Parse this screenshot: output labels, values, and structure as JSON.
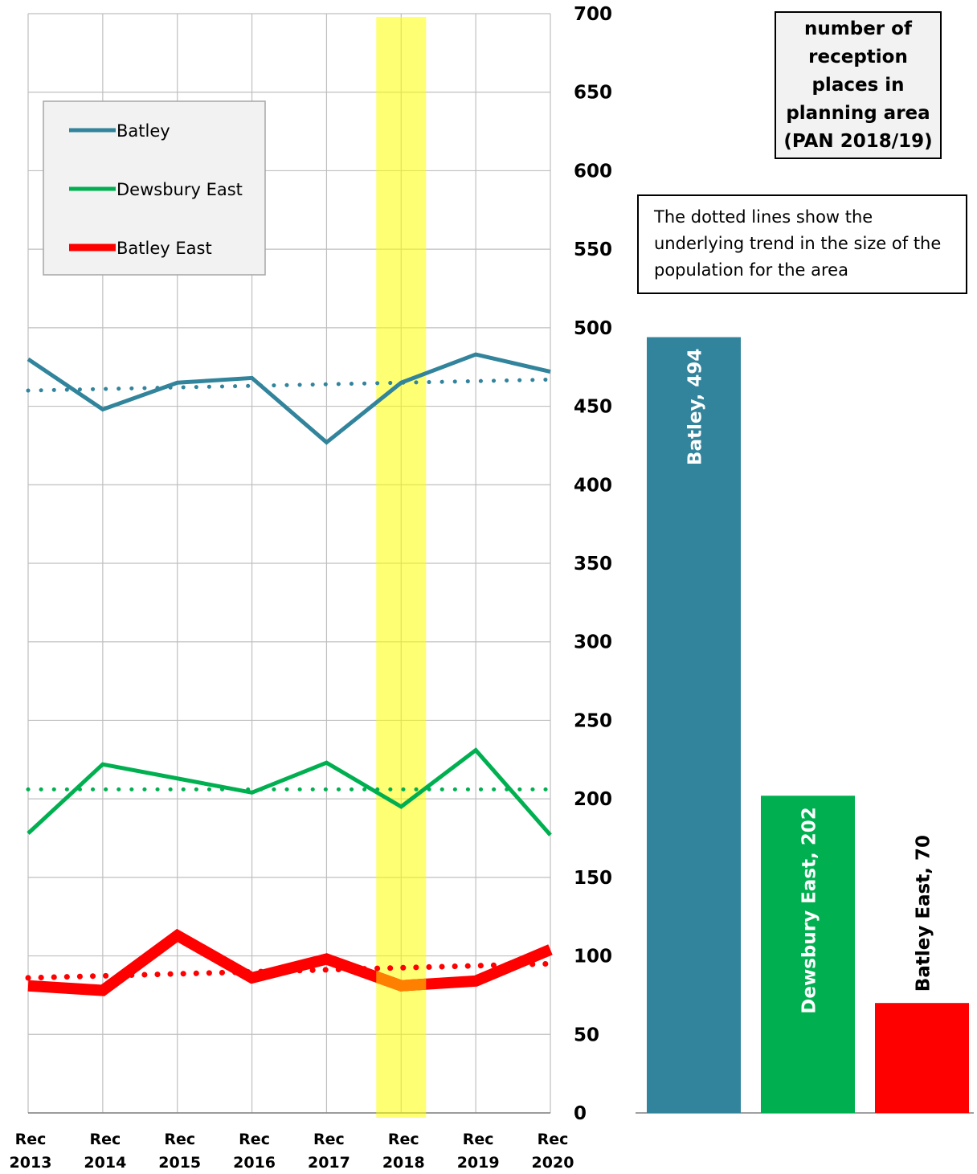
{
  "chart_data": [
    {
      "type": "line",
      "categories": [
        "Rec 2013",
        "Rec 2014",
        "Rec 2015",
        "Rec 2016",
        "Rec 2017",
        "Rec 2018",
        "Rec 2019",
        "Rec 2020"
      ],
      "category_lines": [
        [
          "Rec",
          "2013"
        ],
        [
          "Rec",
          "2014"
        ],
        [
          "Rec",
          "2015"
        ],
        [
          "Rec",
          "2016"
        ],
        [
          "Rec",
          "2017"
        ],
        [
          "Rec",
          "2018"
        ],
        [
          "Rec",
          "2019"
        ],
        [
          "Rec",
          "2020"
        ]
      ],
      "ylim": [
        0,
        700
      ],
      "yticks": [
        0,
        50,
        100,
        150,
        200,
        250,
        300,
        350,
        400,
        450,
        500,
        550,
        600,
        650,
        700
      ],
      "y_axis_side": "right",
      "grid": true,
      "highlight_category": "Rec 2018",
      "legend_position": "top-left",
      "series": [
        {
          "name": "Batley",
          "color": "#31849b",
          "values": [
            480,
            448,
            465,
            468,
            427,
            465,
            483,
            472
          ],
          "trend": [
            460,
            467
          ],
          "width": 5
        },
        {
          "name": "Dewsbury East",
          "color": "#00b050",
          "values": [
            178,
            222,
            213,
            204,
            223,
            195,
            231,
            177
          ],
          "trend": [
            206,
            206
          ],
          "width": 5
        },
        {
          "name": "Batley East",
          "color": "#ff0000",
          "highlight_color": "#ff8000",
          "values": [
            81,
            78,
            113,
            86,
            98,
            81,
            84,
            104
          ],
          "trend": [
            86,
            95
          ],
          "width": 14
        }
      ]
    },
    {
      "type": "bar",
      "title": "number of\nreception\nplaces in\nplanning area\n(PAN 2018/19)",
      "ylim": [
        0,
        700
      ],
      "categories": [
        "Batley",
        "Dewsbury East",
        "Batley East"
      ],
      "values": [
        494,
        202,
        70
      ],
      "colors": [
        "#31849b",
        "#00b050",
        "#ff0000"
      ],
      "label_colors": [
        "#ffffff",
        "#ffffff",
        "#000000"
      ],
      "labels": [
        "Batley, 494",
        "Dewsbury East, 202",
        "Batley East, 70"
      ]
    }
  ],
  "note": "The dotted lines show the underlying trend in the size of the population for the area"
}
